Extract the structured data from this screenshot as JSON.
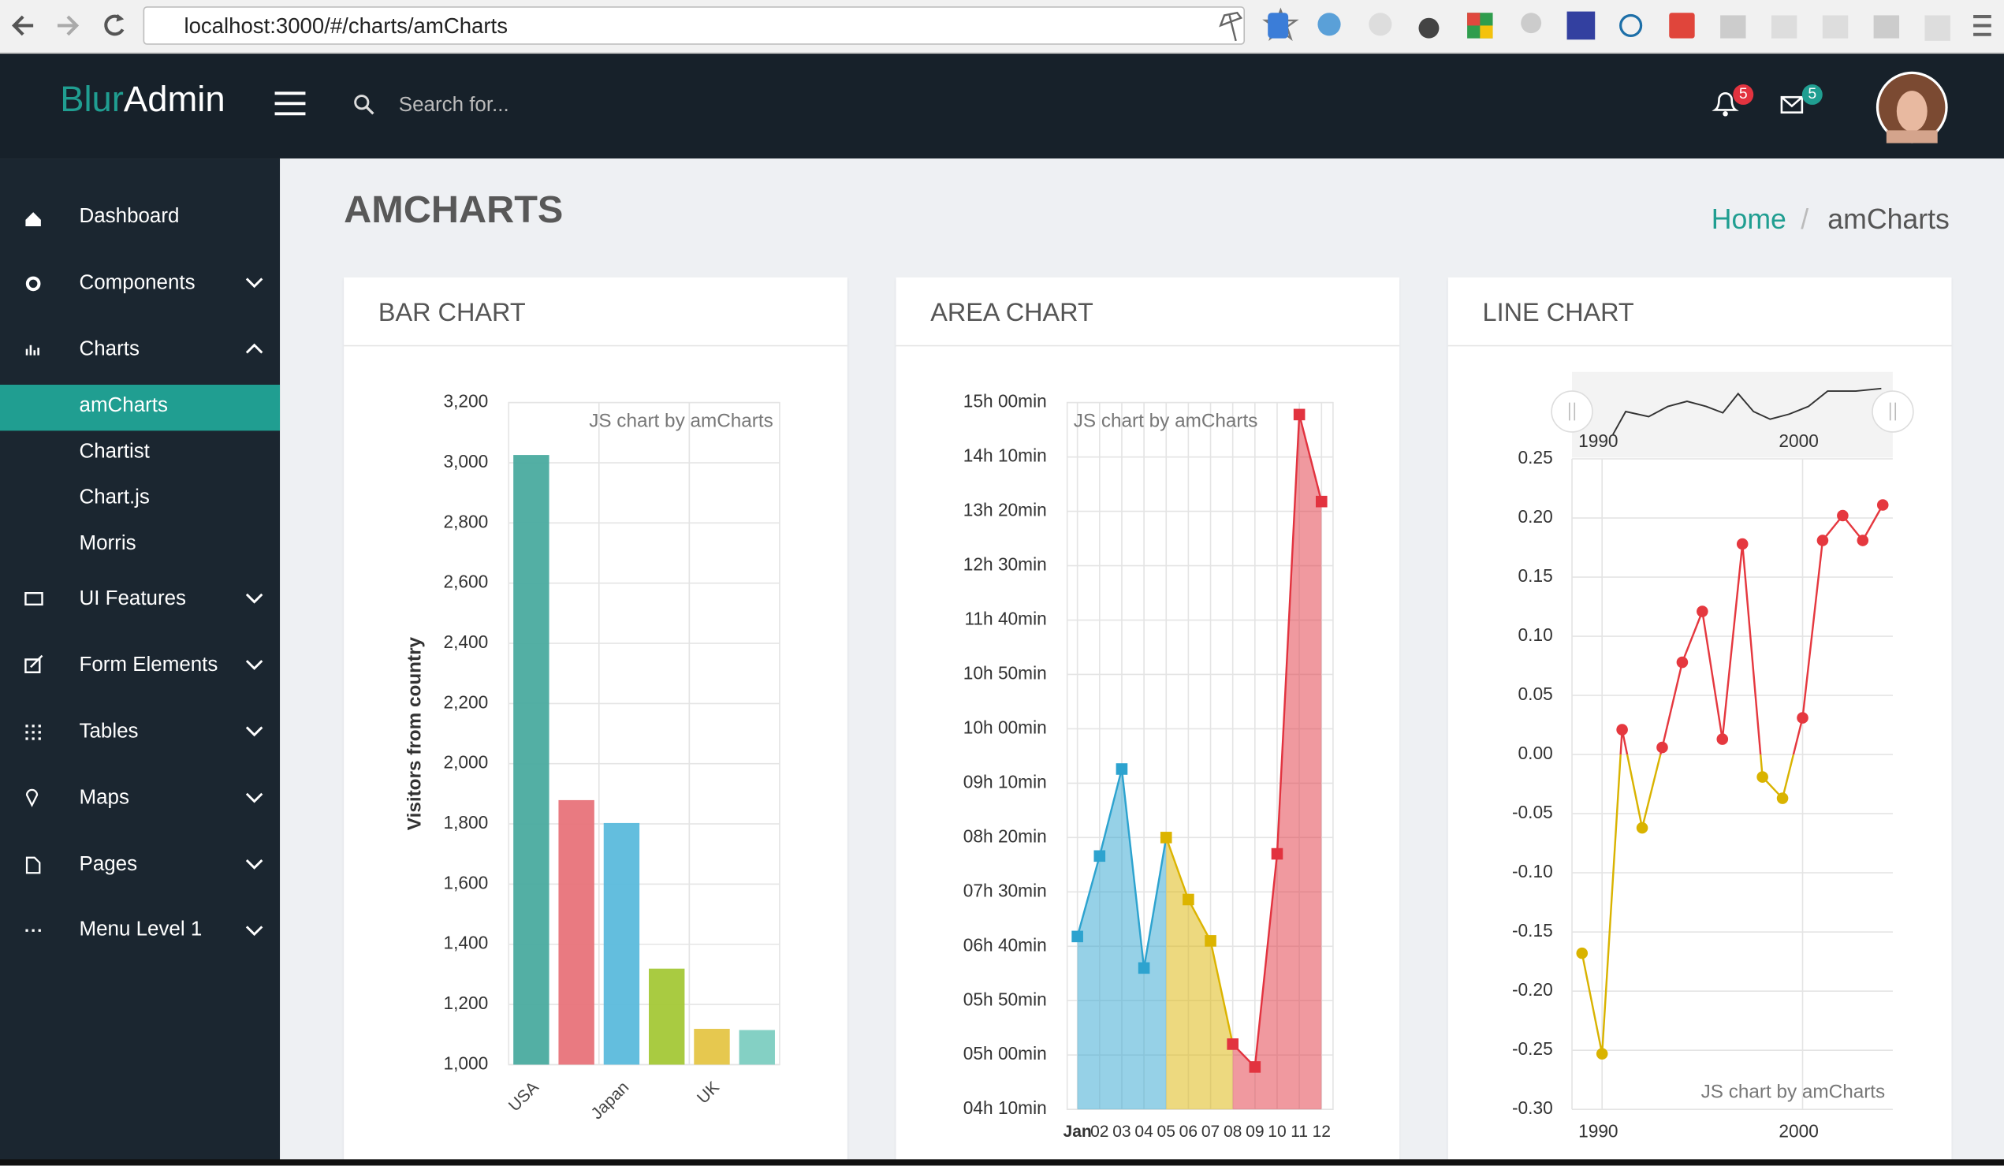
{
  "browser": {
    "url": "localhost:3000/#/charts/amCharts"
  },
  "header": {
    "logo_accent": "Blur",
    "logo_rest": "Admin",
    "search_placeholder": "Search for...",
    "notifications": "5",
    "messages": "5"
  },
  "sidebar": {
    "items": [
      {
        "label": "Dashboard"
      },
      {
        "label": "Components"
      },
      {
        "label": "Charts",
        "children": [
          "amCharts",
          "Chartist",
          "Chart.js",
          "Morris"
        ]
      },
      {
        "label": "UI Features"
      },
      {
        "label": "Form Elements"
      },
      {
        "label": "Tables"
      },
      {
        "label": "Maps"
      },
      {
        "label": "Pages"
      },
      {
        "label": "Menu Level 1"
      }
    ]
  },
  "page": {
    "title": "AMCHARTS",
    "breadcrumb": [
      "Home",
      "amCharts"
    ],
    "breadcrumb_separator": "/"
  },
  "cards": [
    {
      "title": "BAR CHART"
    },
    {
      "title": "AREA CHART"
    },
    {
      "title": "LINE CHART"
    }
  ],
  "chart_data": [
    {
      "type": "bar",
      "watermark": "JS chart by amCharts",
      "y_label": "Visitors from country",
      "categories": [
        "USA",
        null,
        "Japan",
        null,
        "UK",
        null
      ],
      "values": [
        3026,
        1879,
        1803,
        1319,
        1119,
        1115
      ],
      "colors": [
        "#4aab9f",
        "#e8737a",
        "#5bbbdc",
        "#a4c837",
        "#e5c546",
        "#7dcdc1"
      ],
      "ylim": [
        1000,
        3200
      ],
      "yticks": [
        {
          "value": 1000,
          "label": "1,000"
        },
        {
          "value": 1200,
          "label": "1,200"
        },
        {
          "value": 1400,
          "label": "1,400"
        },
        {
          "value": 1600,
          "label": "1,600"
        },
        {
          "value": 1800,
          "label": "1,800"
        },
        {
          "value": 2000,
          "label": "2,000"
        },
        {
          "value": 2200,
          "label": "2,200"
        },
        {
          "value": 2400,
          "label": "2,400"
        },
        {
          "value": 2600,
          "label": "2,600"
        },
        {
          "value": 2800,
          "label": "2,800"
        },
        {
          "value": 3000,
          "label": "3,000"
        },
        {
          "value": 3200,
          "label": "3,200"
        }
      ],
      "grid": true
    },
    {
      "type": "area",
      "watermark": "JS chart by amCharts",
      "categories": [
        "Jan",
        "02",
        "03",
        "04",
        "05",
        "06",
        "07",
        "08",
        "09",
        "10",
        "11",
        "12"
      ],
      "values": [
        409,
        483,
        563,
        380,
        500,
        443,
        405,
        310,
        289,
        485,
        889,
        809
      ],
      "colors": [
        "#2da3cf",
        "#2da3cf",
        "#2da3cf",
        "#2da3cf",
        "#dcb400",
        "#dcb400",
        "#dcb400",
        "#e2333f",
        "#e2333f",
        "#e2333f",
        "#e2333f",
        "#e2333f"
      ],
      "ylim": [
        250,
        900
      ],
      "yticks": [
        {
          "value": 250,
          "label": "04h 10min"
        },
        {
          "value": 300,
          "label": "05h 00min"
        },
        {
          "value": 350,
          "label": "05h 50min"
        },
        {
          "value": 400,
          "label": "06h 40min"
        },
        {
          "value": 450,
          "label": "07h 30min"
        },
        {
          "value": 500,
          "label": "08h 20min"
        },
        {
          "value": 550,
          "label": "09h 10min"
        },
        {
          "value": 600,
          "label": "10h 00min"
        },
        {
          "value": 650,
          "label": "10h 50min"
        },
        {
          "value": 700,
          "label": "11h 40min"
        },
        {
          "value": 750,
          "label": "12h 30min"
        },
        {
          "value": 800,
          "label": "13h 20min"
        },
        {
          "value": 850,
          "label": "14h 10min"
        },
        {
          "value": 900,
          "label": "15h 00min"
        }
      ],
      "grid": true
    },
    {
      "type": "line",
      "watermark": "JS chart by amCharts",
      "x": [
        1989,
        1990,
        1991,
        1992,
        1993,
        1994,
        1995,
        1996,
        1997,
        1998,
        1999,
        2000,
        2001,
        2002,
        2003,
        2004
      ],
      "values": [
        -0.168,
        -0.253,
        0.021,
        -0.062,
        0.006,
        0.078,
        0.121,
        0.013,
        0.178,
        -0.019,
        -0.037,
        0.031,
        0.181,
        0.202,
        0.181,
        0.211
      ],
      "color": "#e5383f",
      "negative_color": "#d9b300",
      "xlim": [
        1988.5,
        2004.5
      ],
      "xticks": [
        1990,
        2000
      ],
      "ylim": [
        -0.3,
        0.25
      ],
      "yticks": [
        {
          "value": -0.3,
          "label": "-0.30"
        },
        -0.25,
        {
          "value": -0.2,
          "label": "-0.20"
        },
        -0.15,
        {
          "value": -0.1,
          "label": "-0.10"
        },
        -0.05,
        {
          "value": 0,
          "label": "0.00"
        },
        0.05,
        {
          "value": 0.1,
          "label": "0.10"
        },
        0.15,
        {
          "value": 0.2,
          "label": "0.20"
        },
        0.25
      ],
      "grid": true
    }
  ]
}
